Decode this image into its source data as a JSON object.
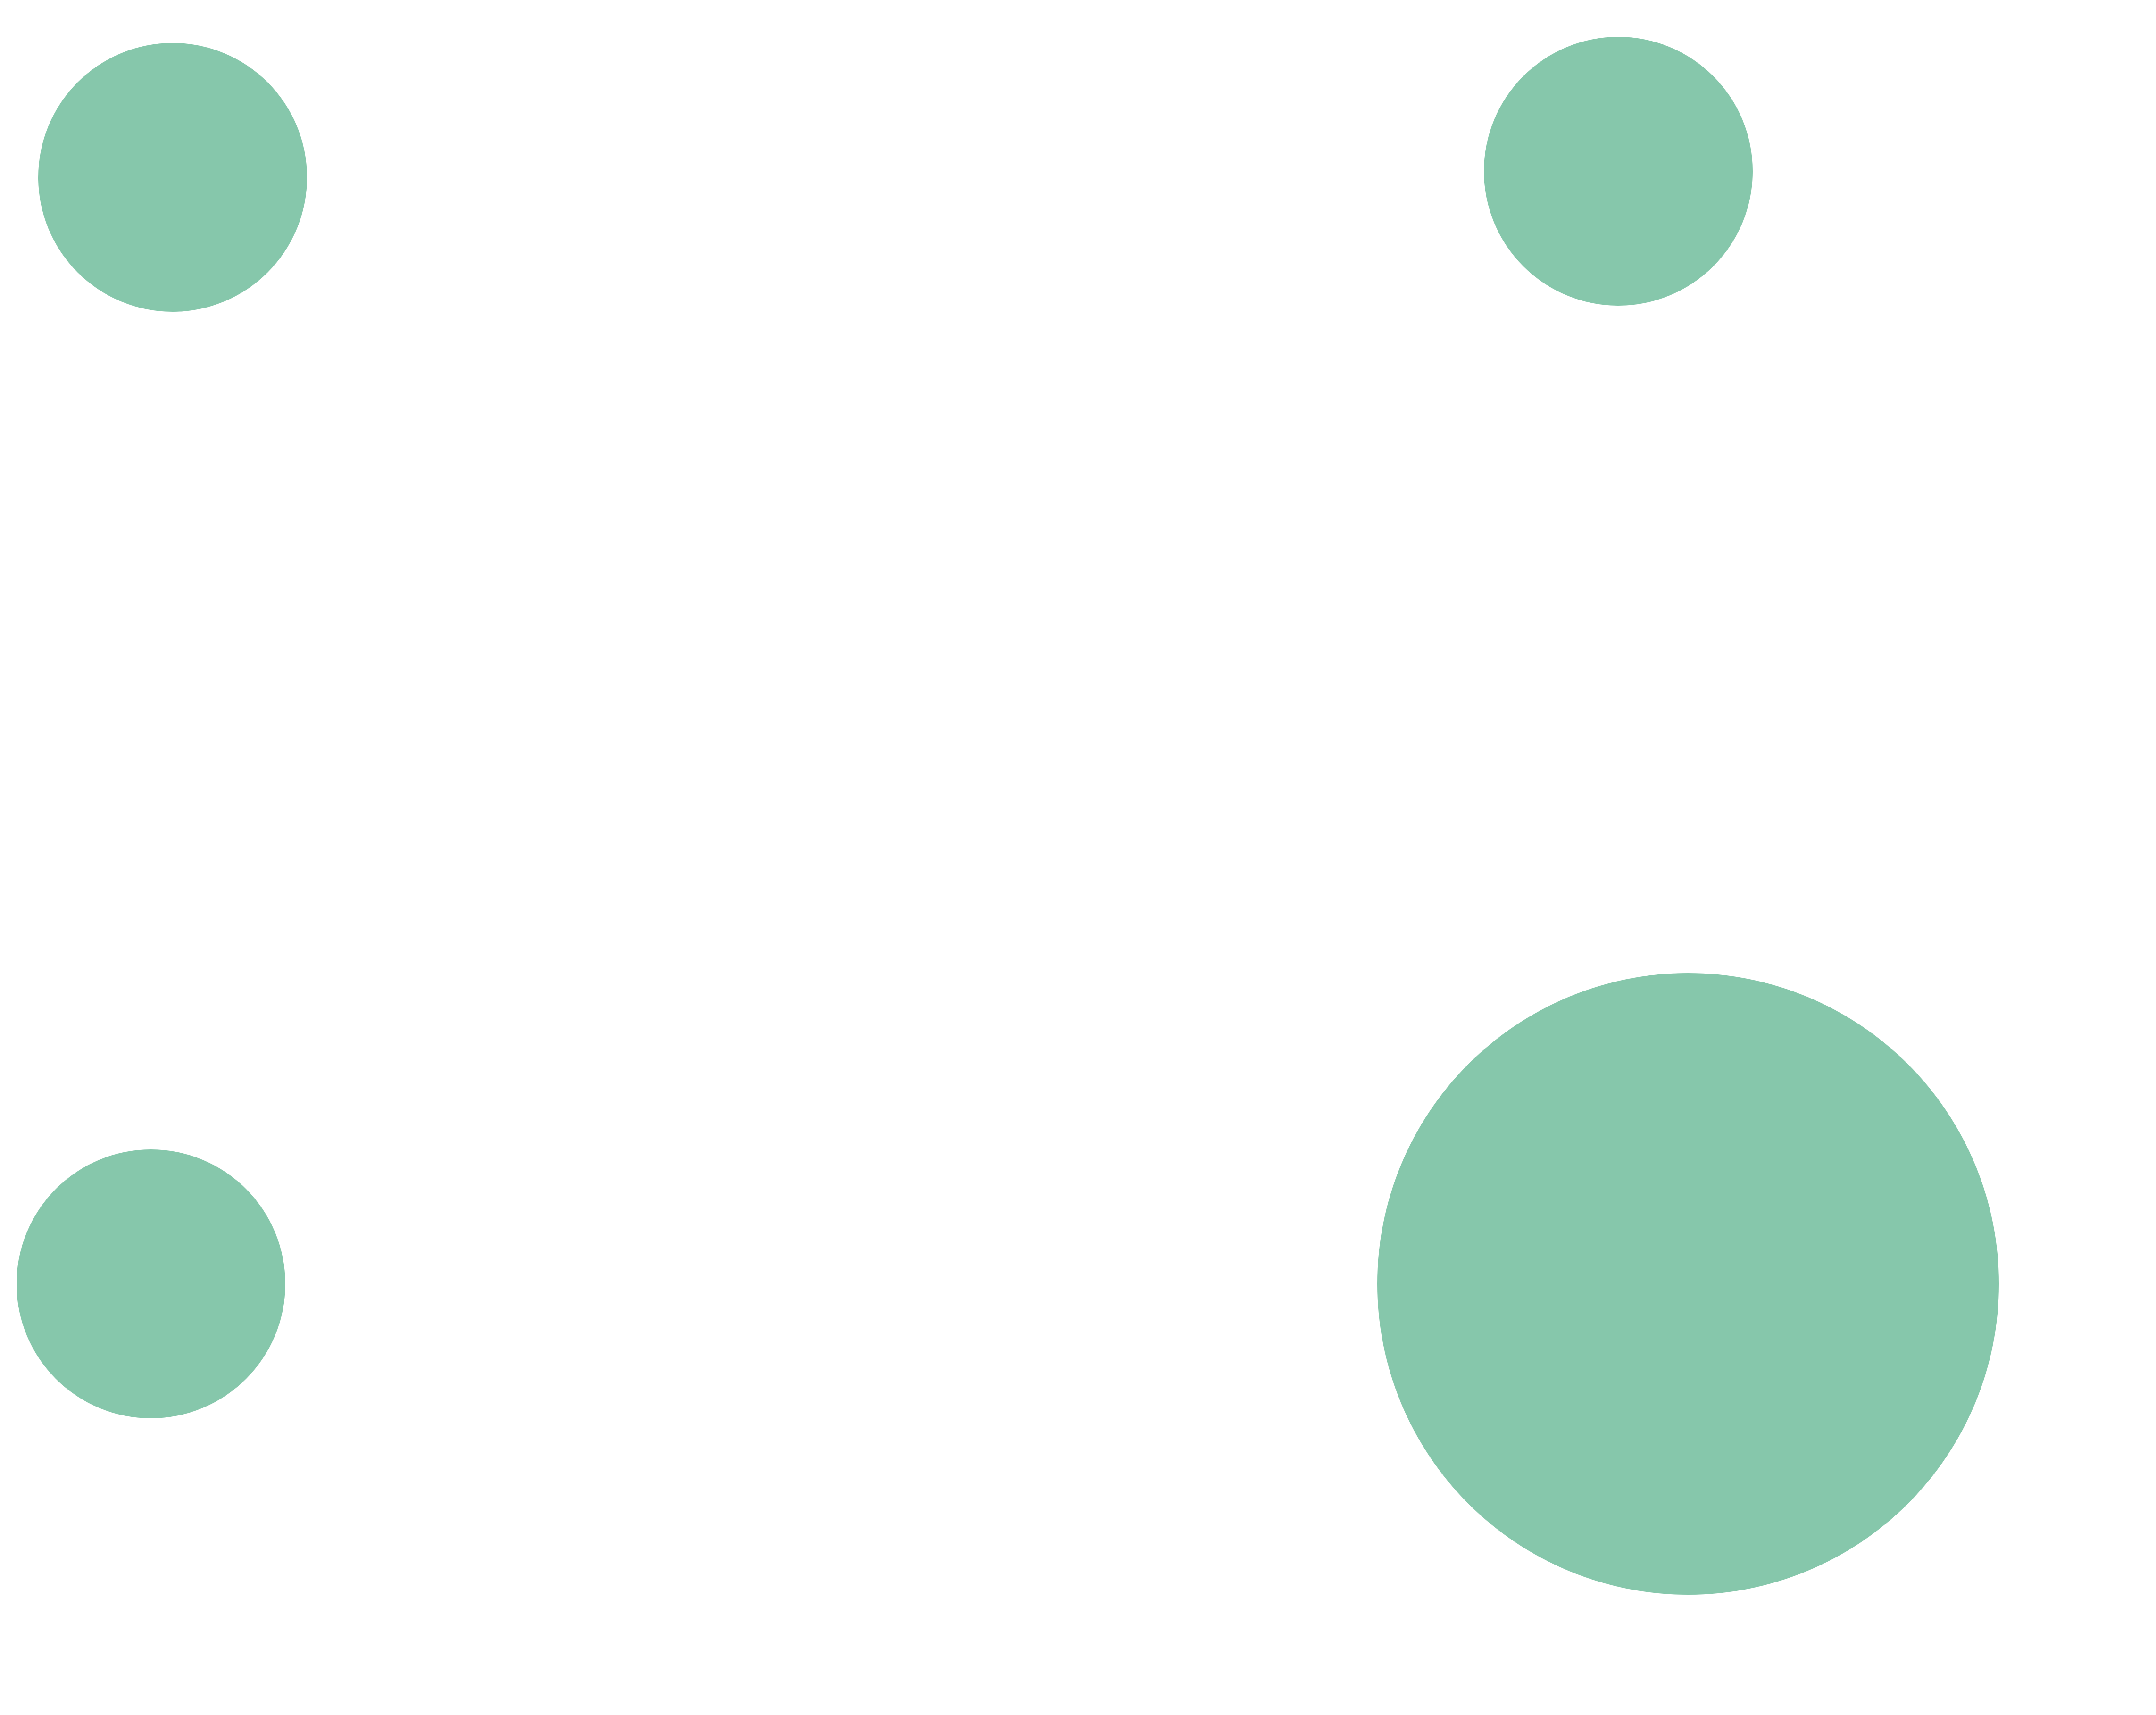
{
  "colors": {
    "background": "#ffffff",
    "circle_fill": "#86c7ab"
  },
  "shapes": [
    {
      "name": "circle-top-left"
    },
    {
      "name": "circle-top-right"
    },
    {
      "name": "circle-bottom-left"
    },
    {
      "name": "circle-bottom-right-large"
    }
  ]
}
